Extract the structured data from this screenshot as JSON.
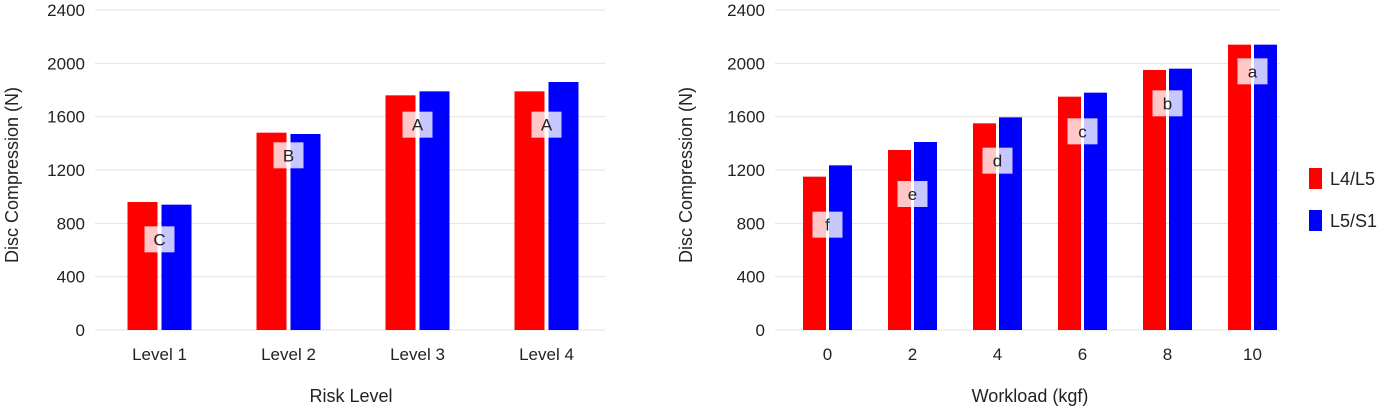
{
  "legend": [
    {
      "label": "L4/L5",
      "color": "#ff0000"
    },
    {
      "label": "L5/S1",
      "color": "#0000ff"
    }
  ],
  "chart_data": [
    {
      "type": "bar",
      "xlabel": "Risk Level",
      "ylabel": "Disc Compression (N)",
      "ylim": [
        0,
        2400
      ],
      "yticks": [
        "0",
        "400",
        "800",
        "1200",
        "1600",
        "2000",
        "2400"
      ],
      "grid": true,
      "categories": [
        "Level 1",
        "Level 2",
        "Level 3",
        "Level 4"
      ],
      "series": [
        {
          "name": "L4/L5",
          "color": "#ff0000",
          "values": [
            960,
            1480,
            1760,
            1790
          ]
        },
        {
          "name": "L5/S1",
          "color": "#0000ff",
          "values": [
            940,
            1470,
            1790,
            1860
          ]
        }
      ],
      "annotations": [
        {
          "category": "Level 1",
          "text": "C",
          "y": 680
        },
        {
          "category": "Level 2",
          "text": "B",
          "y": 1310
        },
        {
          "category": "Level 3",
          "text": "A",
          "y": 1540
        },
        {
          "category": "Level 4",
          "text": "A",
          "y": 1540
        }
      ]
    },
    {
      "type": "bar",
      "xlabel": "Workload (kgf)",
      "ylabel": "Disc Compression (N)",
      "ylim": [
        0,
        2400
      ],
      "yticks": [
        "0",
        "400",
        "800",
        "1200",
        "1600",
        "2000",
        "2400"
      ],
      "grid": true,
      "categories": [
        "0",
        "2",
        "4",
        "6",
        "8",
        "10"
      ],
      "series": [
        {
          "name": "L4/L5",
          "color": "#ff0000",
          "values": [
            1150,
            1350,
            1550,
            1750,
            1950,
            2140
          ]
        },
        {
          "name": "L5/S1",
          "color": "#0000ff",
          "values": [
            1235,
            1410,
            1595,
            1780,
            1960,
            2140
          ]
        }
      ],
      "legend_position": "right",
      "annotations": [
        {
          "category": "0",
          "text": "f",
          "y": 790
        },
        {
          "category": "2",
          "text": "e",
          "y": 1020
        },
        {
          "category": "4",
          "text": "d",
          "y": 1270
        },
        {
          "category": "6",
          "text": "c",
          "y": 1490
        },
        {
          "category": "8",
          "text": "b",
          "y": 1700
        },
        {
          "category": "10",
          "text": "a",
          "y": 1940
        }
      ]
    }
  ]
}
